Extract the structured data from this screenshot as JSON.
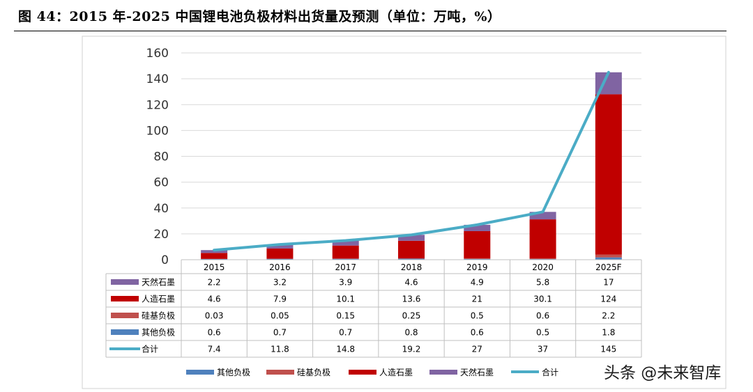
{
  "figure_title": "图 44：2015 年-2025 中国锂电池负极材料出货量及预测（单位：万吨，%）",
  "watermark": "头条 @未来智库",
  "colors": {
    "other_anode": "#4F81BD",
    "silicon_anode": "#C0504D",
    "artificial_graphite": "#C00000",
    "natural_graphite": "#8064A2",
    "total_line": "#4BACC6"
  },
  "chart_data": {
    "type": "bar",
    "stacked": true,
    "title": "",
    "xlabel": "",
    "ylabel": "",
    "ylim": [
      0,
      160
    ],
    "yticks": [
      0,
      20,
      40,
      60,
      80,
      100,
      120,
      140,
      160
    ],
    "grid": true,
    "categories": [
      "2015",
      "2016",
      "2017",
      "2018",
      "2019",
      "2020",
      "2025F"
    ],
    "series": [
      {
        "name": "其他负极",
        "type": "bar",
        "color": "#4F81BD",
        "values": [
          0.6,
          0.7,
          0.7,
          0.8,
          0.6,
          0.5,
          1.8
        ],
        "labels": [
          "0.6",
          "0.7",
          "0.7",
          "0.8",
          "0.6",
          "0.5",
          "1.8"
        ]
      },
      {
        "name": "硅基负极",
        "type": "bar",
        "color": "#C0504D",
        "values": [
          0.03,
          0.05,
          0.15,
          0.25,
          0.5,
          0.6,
          2.2
        ],
        "labels": [
          "0.03",
          "0.05",
          "0.15",
          "0.25",
          "0.5",
          "0.6",
          "2.2"
        ]
      },
      {
        "name": "人造石墨",
        "type": "bar",
        "color": "#C00000",
        "values": [
          4.6,
          7.9,
          10.1,
          13.6,
          21,
          30.1,
          124
        ],
        "labels": [
          "4.6",
          "7.9",
          "10.1",
          "13.6",
          "21",
          "30.1",
          "124"
        ]
      },
      {
        "name": "天然石墨",
        "type": "bar",
        "color": "#8064A2",
        "values": [
          2.2,
          3.2,
          3.9,
          4.6,
          4.9,
          5.8,
          17
        ],
        "labels": [
          "2.2",
          "3.2",
          "3.9",
          "4.6",
          "4.9",
          "5.8",
          "17"
        ]
      },
      {
        "name": "合计",
        "type": "line",
        "color": "#4BACC6",
        "values": [
          7.4,
          11.8,
          14.8,
          19.2,
          27,
          37,
          145
        ],
        "labels": [
          "7.4",
          "11.8",
          "14.8",
          "19.2",
          "27",
          "37",
          "145"
        ]
      }
    ],
    "table_rows": [
      "天然石墨",
      "人造石墨",
      "硅基负极",
      "其他负极",
      "合计"
    ],
    "legend_order": [
      "其他负极",
      "硅基负极",
      "人造石墨",
      "天然石墨",
      "合计"
    ],
    "legend_position": "bottom"
  }
}
